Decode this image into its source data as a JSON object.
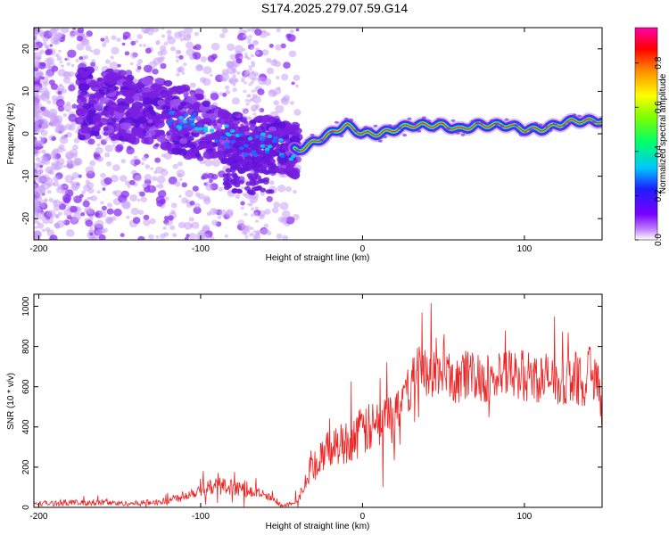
{
  "figure_title": "S174.2025.279.07.59.G14",
  "colorbar": {
    "label": "Normalized spectral amplitude",
    "ticks": [
      "0.0",
      "0.2",
      "0.4",
      "0.6",
      "0.8"
    ],
    "tick_values": [
      0.0,
      0.2,
      0.4,
      0.6,
      0.8
    ],
    "range": [
      0,
      0.96
    ],
    "colors": [
      "#ffffff",
      "#c080ff",
      "#7a00ff",
      "#1e1eff",
      "#00c8ff",
      "#00ff6a",
      "#80ff00",
      "#ffff00",
      "#ff8800",
      "#ff0000",
      "#ff00aa"
    ]
  },
  "colors": {
    "spectrum_purple": "#7a20e0",
    "ridge_core": "#ff2a2a",
    "ridge_mid": "#00e0a0",
    "snr_line": "#ee2222"
  },
  "chart_data": [
    {
      "type": "heatmap",
      "name": "Doppler spectrum",
      "xlabel": "Height of straight line (km)",
      "ylabel": "Frequency (Hz)",
      "xlim": [
        -203,
        148
      ],
      "ylim": [
        -25,
        25
      ],
      "xticks": [
        -200,
        -100,
        0,
        100
      ],
      "xtick_labels": [
        "-200",
        "-100",
        "0",
        "100"
      ],
      "yticks": [
        -20,
        -10,
        0,
        10,
        20
      ],
      "ytick_labels": [
        "-20",
        "-10",
        "0",
        "10",
        "20"
      ],
      "ridge_x": [
        -160,
        -140,
        -120,
        -100,
        -90,
        -80,
        -70,
        -60,
        -50,
        -40,
        -30,
        -20,
        -10,
        0,
        10,
        20,
        30,
        40,
        50,
        60,
        70,
        80,
        90,
        100,
        110,
        120,
        130,
        140,
        148
      ],
      "ridge_y": [
        7,
        6,
        4,
        2,
        0,
        -1,
        -3,
        -2,
        -3,
        -4,
        -2,
        0,
        2,
        0,
        0,
        1,
        2,
        2,
        2,
        1,
        2,
        2,
        2,
        1,
        1,
        2,
        3,
        3,
        3
      ]
    },
    {
      "type": "line",
      "name": "SNR",
      "xlabel": "Height of straight line (km)",
      "ylabel": "SNR (10 * v/v)",
      "xlim": [
        -203,
        148
      ],
      "ylim": [
        0,
        1060
      ],
      "xticks": [
        -200,
        -100,
        0,
        100
      ],
      "xtick_labels": [
        "-200",
        "-100",
        "0",
        "100"
      ],
      "yticks": [
        0,
        200,
        400,
        600,
        800,
        1000
      ],
      "ytick_labels": [
        "0",
        "200",
        "400",
        "600",
        "800",
        "1000"
      ],
      "x": [
        -203,
        -190,
        -180,
        -170,
        -160,
        -150,
        -140,
        -130,
        -120,
        -110,
        -100,
        -90,
        -80,
        -70,
        -60,
        -50,
        -45,
        -40,
        -35,
        -30,
        -25,
        -20,
        -15,
        -10,
        -5,
        0,
        5,
        10,
        15,
        20,
        25,
        30,
        35,
        40,
        45,
        50,
        55,
        60,
        65,
        70,
        75,
        80,
        85,
        90,
        95,
        100,
        105,
        110,
        115,
        120,
        125,
        130,
        135,
        140,
        148
      ],
      "y": [
        20,
        20,
        25,
        20,
        25,
        20,
        20,
        25,
        30,
        60,
        90,
        110,
        100,
        80,
        60,
        10,
        20,
        40,
        120,
        200,
        250,
        300,
        310,
        330,
        350,
        380,
        390,
        410,
        430,
        470,
        520,
        620,
        680,
        690,
        660,
        640,
        650,
        640,
        650,
        660,
        640,
        650,
        640,
        660,
        650,
        660,
        650,
        640,
        650,
        600,
        630,
        660,
        620,
        670,
        650
      ]
    }
  ]
}
